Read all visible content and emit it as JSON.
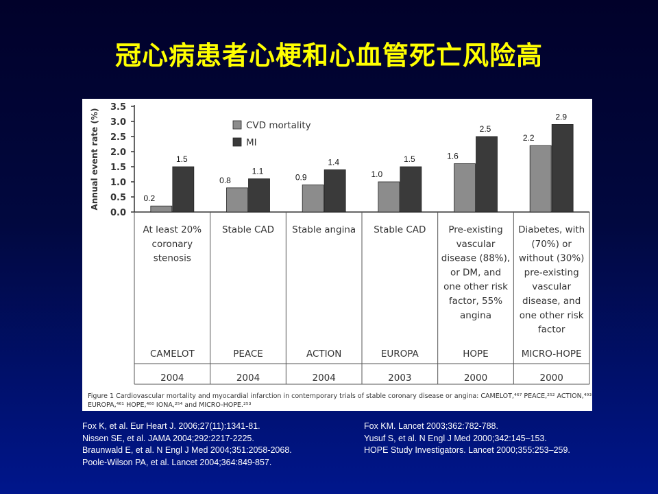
{
  "title": "冠心病患者心梗和心血管死亡风险高",
  "chart_data": {
    "type": "bar",
    "ylabel": "Annual event rate (%)",
    "ylim": [
      0,
      3.5
    ],
    "yticks": [
      "0.0",
      "0.5",
      "1.0",
      "1.5",
      "2.0",
      "2.5",
      "3.0",
      "3.5"
    ],
    "grid": false,
    "legend_position": "top-left",
    "series": [
      {
        "name": "CVD mortality",
        "color": "#8c8c8c",
        "values": [
          0.2,
          0.8,
          0.9,
          1.0,
          1.6,
          2.2
        ],
        "labels": [
          "0.2",
          "0.8",
          "0.9",
          "1.0",
          "1.6",
          "2.2"
        ]
      },
      {
        "name": "MI",
        "color": "#3a3a3a",
        "values": [
          1.5,
          1.1,
          1.4,
          1.5,
          2.5,
          2.9
        ],
        "labels": [
          "1.5",
          "1.1",
          "1.4",
          "1.5",
          "2.5",
          "2.9"
        ]
      }
    ],
    "groups": [
      {
        "description": [
          "At least 20%",
          "coronary",
          "stenosis"
        ],
        "trial": "CAMELOT",
        "year": "2004"
      },
      {
        "description": [
          "Stable CAD"
        ],
        "trial": "PEACE",
        "year": "2004"
      },
      {
        "description": [
          "Stable angina"
        ],
        "trial": "ACTION",
        "year": "2004"
      },
      {
        "description": [
          "Stable CAD"
        ],
        "trial": "EUROPA",
        "year": "2003"
      },
      {
        "description": [
          "Pre-existing",
          "vascular",
          "disease (88%),",
          "or DM, and",
          "one other risk",
          "factor, 55%",
          "angina"
        ],
        "trial": "HOPE",
        "year": "2000"
      },
      {
        "description": [
          "Diabetes, with",
          "(70%) or",
          "without (30%)",
          "pre-existing",
          "vascular",
          "disease, and",
          "one other risk",
          "factor"
        ],
        "trial": "MICRO-HOPE",
        "year": "2000"
      }
    ],
    "caption": {
      "label": "Figure 1",
      "line1": "Cardiovascular mortality and myocardial infarction in contemporary trials of stable coronary disease or angina: CAMELOT,⁴⁶⁷ PEACE,²⁵² ACTION,⁴⁹³",
      "line2": "EUROPA,⁴⁶¹ HOPE,⁴⁶⁰ IONA,²⁵⁴ and MICRO-HOPE.²⁵³"
    }
  },
  "references": {
    "left": [
      "Fox K, et al. Eur Heart J. 2006;27(11):1341-81.",
      "Nissen SE, et al. JAMA 2004;292:2217-2225.",
      "Braunwald E, et al. N Engl J Med 2004;351:2058-2068.",
      "Poole-Wilson PA, et al. Lancet 2004;364:849-857."
    ],
    "right": [
      "Fox KM. Lancet 2003;362:782-788.",
      "Yusuf S, et al. N Engl J Med 2000;342:145–153.",
      "HOPE Study Investigators. Lancet 2000;355:253–259."
    ]
  }
}
